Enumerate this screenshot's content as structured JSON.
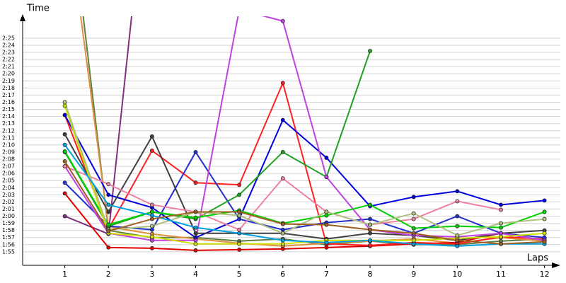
{
  "chart_data": {
    "type": "line",
    "y_label": "Time",
    "x_label": "Laps",
    "x": [
      1,
      2,
      3,
      4,
      5,
      6,
      7,
      8,
      9,
      10,
      11,
      12
    ],
    "xlim": [
      0,
      12.25
    ],
    "xticks": [
      1,
      2,
      3,
      4,
      5,
      6,
      7,
      8,
      9,
      10,
      11,
      12
    ],
    "ylim": [
      113.1,
      148
    ],
    "yticks": [
      {
        "value": 115,
        "label": "1:55"
      },
      {
        "value": 116,
        "label": "1:56"
      },
      {
        "value": 117,
        "label": "1:57"
      },
      {
        "value": 118,
        "label": "1:58"
      },
      {
        "value": 119,
        "label": "1:59"
      },
      {
        "value": 120,
        "label": "2:00"
      },
      {
        "value": 121,
        "label": "2:01"
      },
      {
        "value": 122,
        "label": "2:02"
      },
      {
        "value": 123,
        "label": "2:03"
      },
      {
        "value": 124,
        "label": "2:04"
      },
      {
        "value": 125,
        "label": "2:05"
      },
      {
        "value": 126,
        "label": "2:06"
      },
      {
        "value": 127,
        "label": "2:07"
      },
      {
        "value": 128,
        "label": "2:08"
      },
      {
        "value": 129,
        "label": "2:09"
      },
      {
        "value": 130,
        "label": "2:10"
      },
      {
        "value": 131,
        "label": "2:11"
      },
      {
        "value": 132,
        "label": "2:12"
      },
      {
        "value": 133,
        "label": "2:13"
      },
      {
        "value": 134,
        "label": "2:14"
      },
      {
        "value": 135,
        "label": "2:15"
      },
      {
        "value": 136,
        "label": "2:16"
      },
      {
        "value": 137,
        "label": "2:17"
      },
      {
        "value": 138,
        "label": "2:18"
      },
      {
        "value": 139,
        "label": "2:19"
      },
      {
        "value": 140,
        "label": "2:20"
      },
      {
        "value": 141,
        "label": "2:21"
      },
      {
        "value": 142,
        "label": "2:22"
      },
      {
        "value": 143,
        "label": "2:23"
      },
      {
        "value": 144,
        "label": "2:24"
      },
      {
        "value": 145,
        "label": "2:25"
      }
    ],
    "grid": true,
    "series": [
      {
        "color": "#608040",
        "values": [
          170,
          118,
          117,
          117,
          116.5,
          116.8,
          116,
          116.5,
          116,
          116,
          116.5,
          116.8
        ]
      },
      {
        "color": "#e09040",
        "values": [
          165,
          118.5,
          117.5,
          116.8,
          116.2,
          115.8,
          116.2,
          116.5,
          116.8,
          116.2,
          117,
          116.5
        ]
      },
      {
        "color": "#803080",
        "values": [
          120,
          117.5,
          175,
          null,
          null,
          null,
          null,
          null,
          null,
          null,
          null,
          null
        ]
      },
      {
        "color": "#e00000",
        "values": [
          123.2,
          115.6,
          115.5,
          115.2,
          115.3,
          115.4,
          115.6,
          115.8,
          116.1,
          116.3,
          117.6,
          116.6
        ]
      },
      {
        "color": "#ff2020",
        "values": [
          134.2,
          118.2,
          129.2,
          124.7,
          124.4,
          138.7,
          116.1,
          115.9,
          116.3,
          116.1,
          117.1,
          116.8
        ]
      },
      {
        "color": "#0000e0",
        "values": [
          134.2,
          123.0,
          121.2,
          117.0,
          119.6,
          133.5,
          128.2,
          121.4,
          122.7,
          123.5,
          121.6,
          122.2
        ]
      },
      {
        "color": "#404040",
        "values": [
          131.5,
          120.6,
          131.2,
          117.6,
          117.6,
          117.6,
          116.8,
          117.6,
          117.3,
          116.6,
          117.6,
          118.0
        ]
      },
      {
        "color": "#2030d0",
        "values": [
          124.7,
          118.6,
          118.1,
          129.0,
          119.6,
          118.1,
          119.1,
          119.6,
          117.6,
          120.0,
          117.6,
          117.0
        ]
      },
      {
        "color": "#20a020",
        "values": [
          129.0,
          118.6,
          120.6,
          119.6,
          123.0,
          129.0,
          125.5,
          143.2,
          null,
          null,
          null,
          null
        ]
      },
      {
        "color": "#c040e0",
        "values": [
          127.0,
          117.6,
          116.6,
          116.6,
          149,
          147.4,
          125.5,
          118.1,
          117.3,
          117.1,
          117.6,
          116.6
        ]
      },
      {
        "color": "#f080a0",
        "values": [
          127.0,
          124.5,
          121.6,
          120.6,
          118.1,
          125.3,
          120.6,
          118.8,
          119.6,
          122.1,
          120.9,
          null
        ]
      },
      {
        "color": "#00d000",
        "values": [
          129.1,
          118.8,
          120.6,
          119.8,
          120.8,
          119.0,
          120.1,
          121.6,
          118.3,
          118.6,
          118.4,
          120.6
        ]
      },
      {
        "color": "#d0e000",
        "values": [
          135.5,
          117.6,
          117.1,
          116.1,
          116.1,
          116.1,
          116.6,
          116.6,
          116.6,
          116.9,
          117.1,
          117.6
        ]
      },
      {
        "color": "#b0c080",
        "values": [
          136.0,
          118.1,
          118.6,
          120.6,
          120.1,
          117.6,
          120.6,
          118.8,
          120.4,
          117.3,
          119.0,
          119.6
        ]
      },
      {
        "color": "#00a0e0",
        "values": [
          130.0,
          121.6,
          120.1,
          118.4,
          117.6,
          116.6,
          116.3,
          116.6,
          116.1,
          115.8,
          116.1,
          116.1
        ]
      },
      {
        "color": "#a06020",
        "values": [
          127.7,
          117.9,
          119.6,
          120.6,
          120.6,
          118.9,
          118.8,
          118.1,
          117.6,
          116.6,
          116.1,
          116.4
        ]
      }
    ]
  }
}
